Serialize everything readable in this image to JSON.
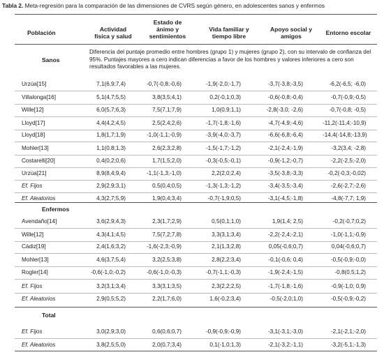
{
  "caption": {
    "label": "Tabla 2.",
    "text": " Meta-regresión para la comparación de las dimensiones de CVRS según género, en adolescentes sanos y enfermos"
  },
  "headers": {
    "poblacion": "Población",
    "c1": [
      "Actividad",
      "física y salud"
    ],
    "c2": [
      "Estado de",
      "ánimo y",
      "sentimientos"
    ],
    "c3": [
      "Vida familiar y",
      "tiempo libre"
    ],
    "c4": [
      "Apoyo social y",
      "amigos"
    ],
    "c5": [
      "Entorno escolar"
    ]
  },
  "sections": {
    "sanos": "Sanos",
    "enfermos": "Enfermos",
    "total": "Total"
  },
  "note": "Diferencia del puntaje promedio entre hombres (grupo 1) y mujeres (grupo 2), con su intervalo de confianza del 95%. Puntajes mayores a cero indican diferencias a favor de los hombres y valores inferiores a cero son resultados favorables a las mujeres.",
  "sanos_rows": [
    {
      "name": "Urzúa[15]",
      "v": [
        "7,1(6,9;7,4)",
        "-0,7(-0,8;-0,6)",
        "-1,9(-2,0;-1,7)",
        "-3,7(-3,8;-3,5)",
        "-6,2(-6,5; -6,0)"
      ]
    },
    {
      "name": "Villalonga[16]",
      "v": [
        "5,1(4,7;5,5)",
        "3,8(3,5;4,1)",
        "0,2(-0,1;0,3)",
        "-0,6(-0,8;-0,4)",
        "-0,7(-0,9;-0,5)"
      ]
    },
    {
      "name": "Wille[12]",
      "v": [
        "6,0(5,7;6,3)",
        "7,5(7,1;7,9)",
        "1,0(0,9;1,1)",
        "-2,8(-3,0; -2,6)",
        "-0,7(-0,8; -0,5)"
      ]
    },
    {
      "name": "Lloyd[17]",
      "v": [
        "4,4(4,2;4,5)",
        "2,5(2,4;2,6)",
        "-1,7(-1,8;-1,6)",
        "-4,7(-4,9;-4,6)",
        "-11,2(-11,4;-10,9)"
      ]
    },
    {
      "name": "Lloyd[18]",
      "v": [
        "1,8(1,7;1,9)",
        "-1,0(-1,1;-0,9)",
        "-3,9(-4,0;-3,7)",
        "-6,6(-6,8;-6,4)",
        "-14,4(-14,8;-13,9)"
      ]
    },
    {
      "name": "Mohler[13]",
      "v": [
        "1,1(0,8;1,3)",
        "2,6(2,3;2,8)",
        "-1,5(-1,7;-1,2)",
        "-2,1(-2,4;-1,9)",
        "-3,2(3,4; -2,8)"
      ]
    },
    {
      "name": "Costarelli[20]",
      "v": [
        "0,4(0,2;0,6)",
        "1,7(1,5;2,0)",
        "-0,3(-0,5;-0,1)",
        "-0,9(-1,2;-0,7)",
        "-2,2(-2,5;-2,0)"
      ]
    },
    {
      "name": "Urzúa[21]",
      "v": [
        "8,9(8,4;9,4)",
        "-1,1(-1,3;-1,0)",
        "2,2(2,0;2,4)",
        "-3,5(-3,8;-3,3)",
        "-0,2(-0,3;-0,02)"
      ]
    }
  ],
  "sanos_summary": [
    {
      "name": "Ef. Fijos",
      "v": [
        "2,9(2,9;3,1)",
        "0,5(0,4;0,5)",
        "-1,3(-1,3;-1,2)",
        "-3,4(-3,5;-3,4)",
        "-2,6(-2,7;-2,6)"
      ]
    },
    {
      "name": "Ef. Aleatorios",
      "v": [
        "4,3(2,7;5,9)",
        "1,9(0,4;3,4)",
        "-0,7(-1,9;0,5)",
        "-3,1(-4,5;-1,8)",
        "-4,8(-7,7; 1,9)"
      ]
    }
  ],
  "enfermos_rows": [
    {
      "name": "Avendaño[14]",
      "v": [
        "3,6(2,9;4,3)",
        "2,3(1,7;2,9)",
        "0,5(0,1;1,0)",
        "1,9(1,4; 2,5)",
        "-0,2(-0,7;0,2)"
      ]
    },
    {
      "name": "Wille[12]",
      "v": [
        "4,3(4,1;4,5)",
        "7,5(7,2;7,8)",
        "3,3(3,1;3,4)",
        "-2,2(-2,4;-2,1)",
        "-1,0(-1,1;-0,9)"
      ]
    },
    {
      "name": "Cádiz[19]",
      "v": [
        "2,4(1,6;3,2)",
        "-1,6(-2,3;-0,9)",
        "2,1(1,3;2,8)",
        "0,05(-0,6;0,7)",
        "0,04(-0,6;0,7)"
      ]
    },
    {
      "name": "Mohler[13]",
      "v": [
        "4,6(3,7;5,4)",
        "3,2(2,5;3,8)",
        "2,8(2,2;3,4)",
        "-0,1(-0,6; 0,4)",
        "-0,5(-0,9;-0,0)"
      ]
    },
    {
      "name": "Rogler[14]",
      "v": [
        "-0,6(-1,0;-0,2)",
        "-0,6(-1,0;-0,3)",
        "-0,7(-1,1;-0,3)",
        "-1,9(-2,4;-1,5)",
        "-0,8(0,5;1,2)"
      ]
    }
  ],
  "enfermos_summary": [
    {
      "name": "Ef. Fijos",
      "v": [
        "3,2(3,1;3,4)",
        "3,3(3,1;3,5)",
        "2,3(2,2;2,5)",
        "-1,7(-1,8;-1,6)",
        "-0,9(-1,0; 0,9)"
      ]
    },
    {
      "name": "Ef. Aleatorios",
      "v": [
        "2,9(0,5;5,2)",
        "2,2(1,7;6,0)",
        "1,6(-0,2;3,4)",
        "-0,5(-2,0;1,0)",
        "-0,5(-0,9;-0,2)"
      ]
    }
  ],
  "total_summary": [
    {
      "name": "Ef. Fijos",
      "v": [
        "3,0(2,9;3,0)",
        "0,6(0,6;0,7)",
        "-0,9(-0,9;-0,9)",
        "-3,1(-3,1;-3,0)",
        "-2,1(-2,1;-2,0)"
      ]
    },
    {
      "name": "Ef. Aleatorios",
      "v": [
        "3,8(2,5;5,0)",
        "2,0(0,7;3,4)",
        "0,1(-1,0;1,3)",
        "-2,1(-3,2;-1,1)",
        "-3,2(-5,1;-1,3)"
      ]
    }
  ]
}
